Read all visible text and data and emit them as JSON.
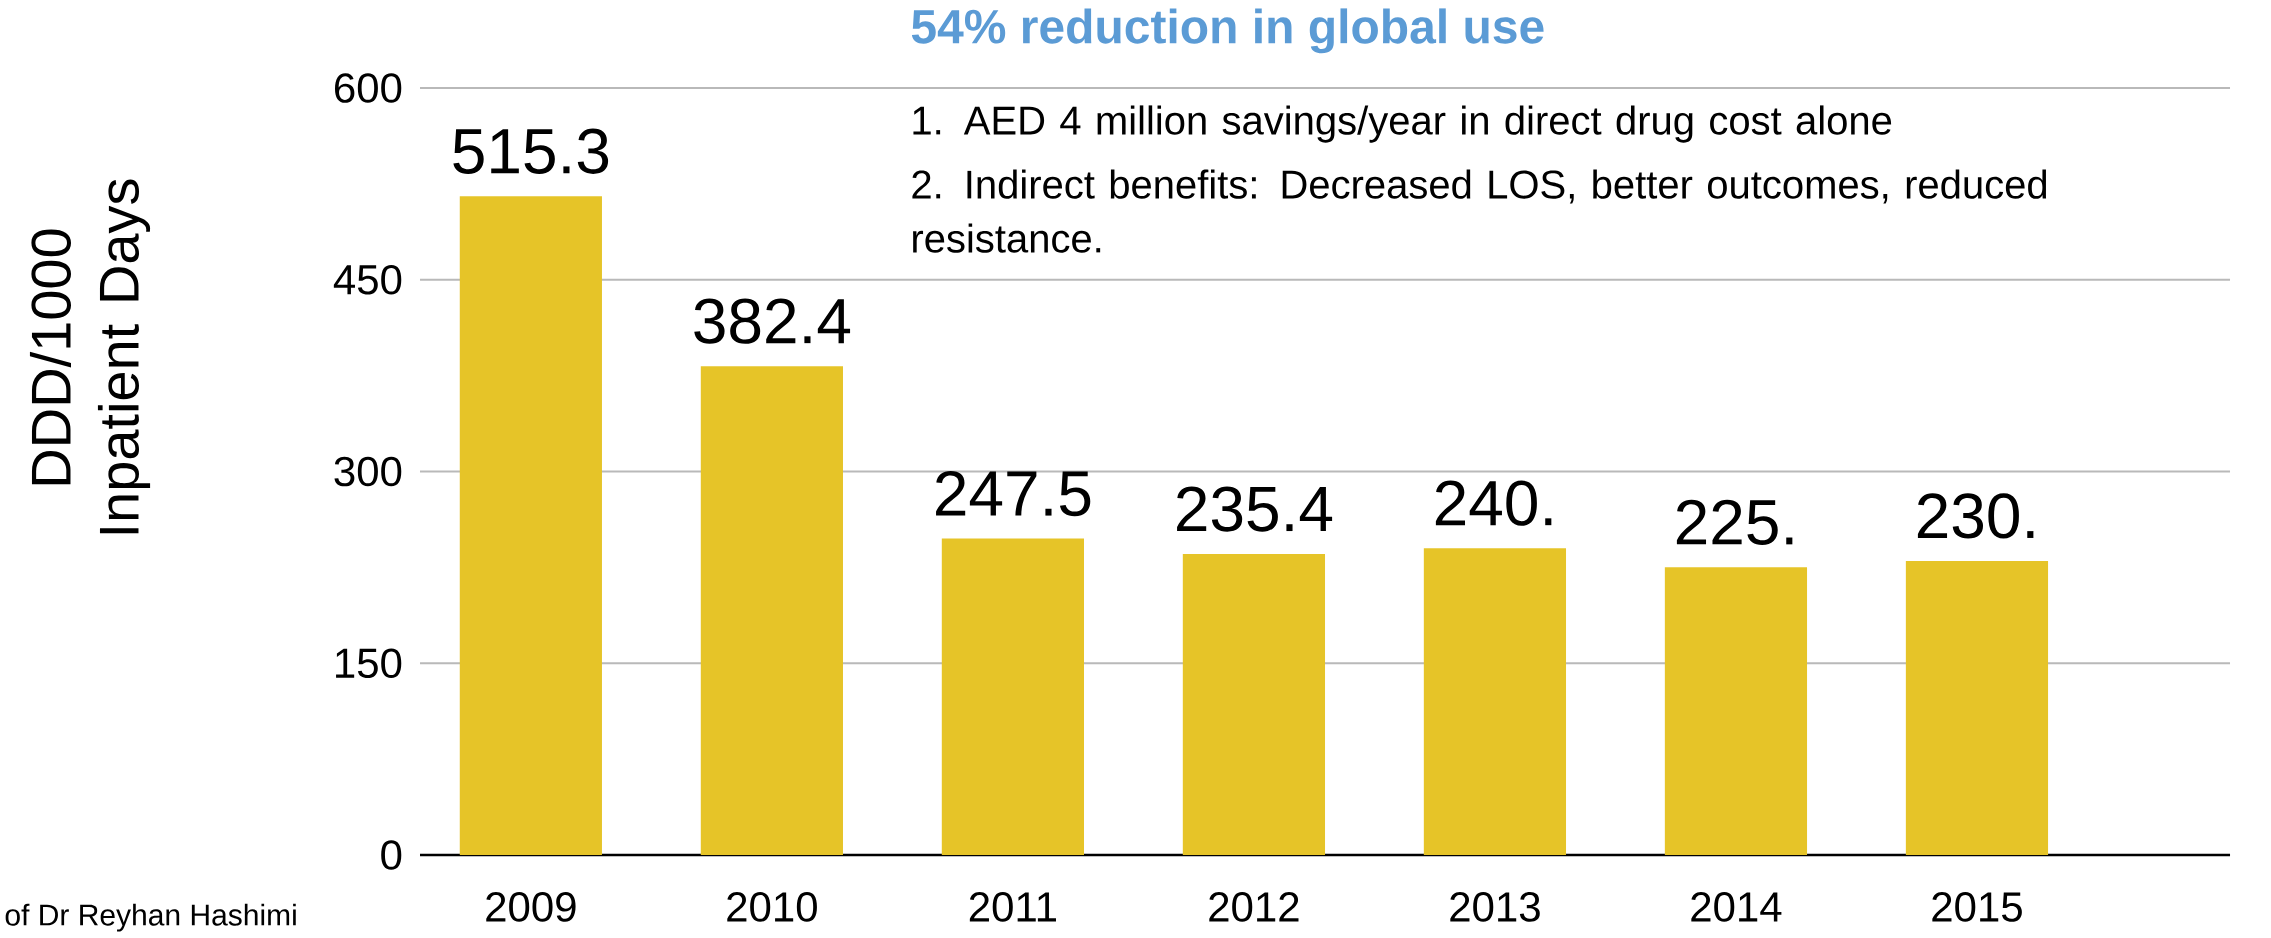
{
  "chart_data": {
    "type": "bar",
    "title": "54% reduction in global use",
    "ylabel": "DDD/1000 Inpatient Days",
    "categories": [
      "2009",
      "2010",
      "2011",
      "2012",
      "2013",
      "2014",
      "2015"
    ],
    "values": [
      515.3,
      382.4,
      247.5,
      235.4,
      240,
      225,
      230
    ],
    "value_labels": [
      "515.3",
      "382.4",
      "247.5",
      "235.4",
      "240.",
      "225.",
      "230."
    ],
    "color": "#e6c428",
    "ylim": [
      0,
      600
    ],
    "yticks": [
      0,
      150,
      300,
      450,
      600
    ],
    "grid": "y",
    "annotations": [
      "1. AED 4 million savings/year in direct drug cost alone",
      "2. Indirect benefits: Decreased LOS, better outcomes, reduced resistance.",
      "of Dr Reyhan Hashimi"
    ]
  }
}
